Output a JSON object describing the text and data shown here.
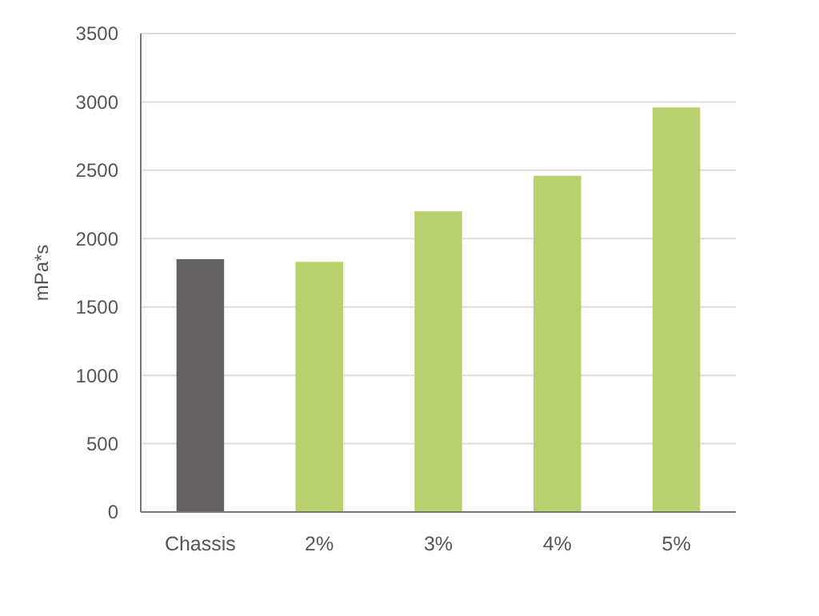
{
  "chart_data": {
    "type": "bar",
    "ylabel": "mPa*s",
    "categories": [
      "Chassis",
      "2%",
      "3%",
      "4%",
      "5%"
    ],
    "values": [
      1850,
      1830,
      2200,
      2460,
      2960
    ],
    "colors": [
      "#656162",
      "#b8d16c",
      "#b8d16c",
      "#b8d16c",
      "#b8d16c"
    ],
    "ylim": [
      0,
      3500
    ],
    "yticks": [
      0,
      500,
      1000,
      1500,
      2000,
      2500,
      3000,
      3500
    ],
    "grid": "y"
  }
}
